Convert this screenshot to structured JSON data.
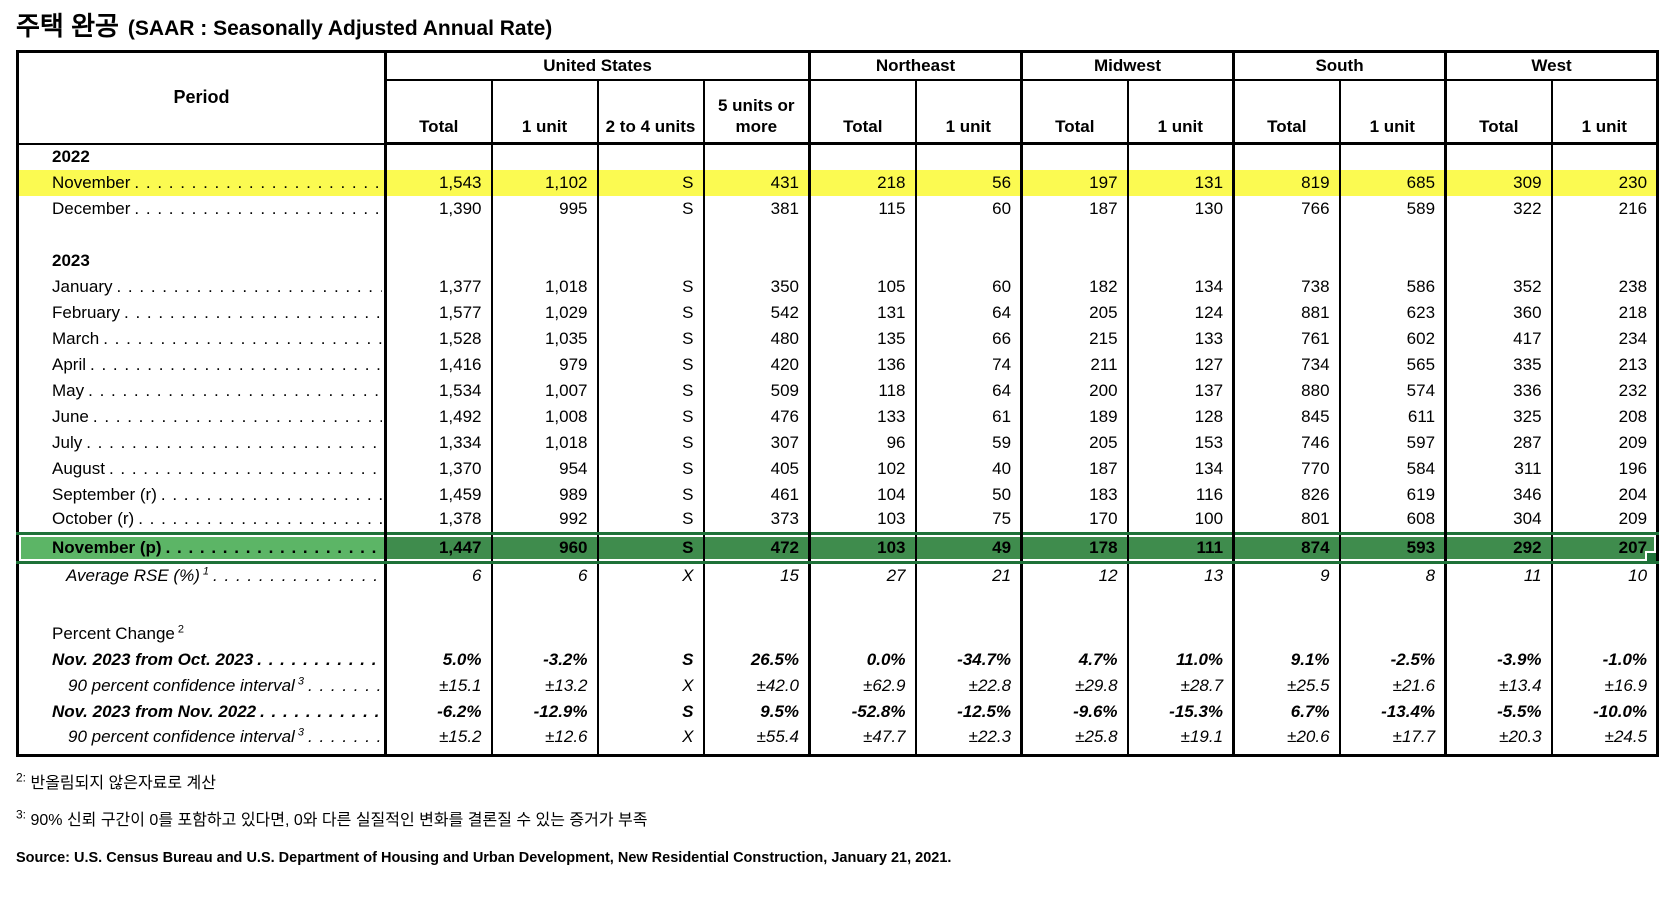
{
  "title": {
    "korean": "주택 완공",
    "english": "(SAAR : Seasonally Adjusted Annual Rate)"
  },
  "table": {
    "period_header": "Period",
    "groups": [
      {
        "label": "United States",
        "cols": [
          "Total",
          "1 unit",
          "2 to 4 units",
          "5 units or more"
        ]
      },
      {
        "label": "Northeast",
        "cols": [
          "Total",
          "1 unit"
        ]
      },
      {
        "label": "Midwest",
        "cols": [
          "Total",
          "1 unit"
        ]
      },
      {
        "label": "South",
        "cols": [
          "Total",
          "1 unit"
        ]
      },
      {
        "label": "West",
        "cols": [
          "Total",
          "1 unit"
        ]
      }
    ],
    "rows": [
      {
        "type": "year",
        "label": "2022"
      },
      {
        "type": "data",
        "label": "November",
        "highlight": "yellow",
        "values": [
          "1,543",
          "1,102",
          "S",
          "431",
          "218",
          "56",
          "197",
          "131",
          "819",
          "685",
          "309",
          "230"
        ]
      },
      {
        "type": "data",
        "label": "December",
        "values": [
          "1,390",
          "995",
          "S",
          "381",
          "115",
          "60",
          "187",
          "130",
          "766",
          "589",
          "322",
          "216"
        ]
      },
      {
        "type": "blank"
      },
      {
        "type": "year",
        "label": "2023"
      },
      {
        "type": "data",
        "label": "January",
        "values": [
          "1,377",
          "1,018",
          "S",
          "350",
          "105",
          "60",
          "182",
          "134",
          "738",
          "586",
          "352",
          "238"
        ]
      },
      {
        "type": "data",
        "label": "February",
        "values": [
          "1,577",
          "1,029",
          "S",
          "542",
          "131",
          "64",
          "205",
          "124",
          "881",
          "623",
          "360",
          "218"
        ]
      },
      {
        "type": "data",
        "label": "March",
        "values": [
          "1,528",
          "1,035",
          "S",
          "480",
          "135",
          "66",
          "215",
          "133",
          "761",
          "602",
          "417",
          "234"
        ]
      },
      {
        "type": "data",
        "label": "April",
        "values": [
          "1,416",
          "979",
          "S",
          "420",
          "136",
          "74",
          "211",
          "127",
          "734",
          "565",
          "335",
          "213"
        ]
      },
      {
        "type": "data",
        "label": "May",
        "values": [
          "1,534",
          "1,007",
          "S",
          "509",
          "118",
          "64",
          "200",
          "137",
          "880",
          "574",
          "336",
          "232"
        ]
      },
      {
        "type": "data",
        "label": "June",
        "values": [
          "1,492",
          "1,008",
          "S",
          "476",
          "133",
          "61",
          "189",
          "128",
          "845",
          "611",
          "325",
          "208"
        ]
      },
      {
        "type": "data",
        "label": "July",
        "values": [
          "1,334",
          "1,018",
          "S",
          "307",
          "96",
          "59",
          "205",
          "153",
          "746",
          "597",
          "287",
          "209"
        ]
      },
      {
        "type": "data",
        "label": "August",
        "values": [
          "1,370",
          "954",
          "S",
          "405",
          "102",
          "40",
          "187",
          "134",
          "770",
          "584",
          "311",
          "196"
        ]
      },
      {
        "type": "data",
        "label": "September (r)",
        "values": [
          "1,459",
          "989",
          "S",
          "461",
          "104",
          "50",
          "183",
          "116",
          "826",
          "619",
          "346",
          "204"
        ]
      },
      {
        "type": "data",
        "label": "October (r)",
        "values": [
          "1,378",
          "992",
          "S",
          "373",
          "103",
          "75",
          "170",
          "100",
          "801",
          "608",
          "304",
          "209"
        ]
      },
      {
        "type": "data",
        "label": "November (p)",
        "highlight": "green",
        "values": [
          "1,447",
          "960",
          "S",
          "472",
          "103",
          "49",
          "178",
          "111",
          "874",
          "593",
          "292",
          "207"
        ]
      },
      {
        "type": "rse",
        "label": "Average RSE (%)",
        "sup": "1",
        "values": [
          "6",
          "6",
          "X",
          "15",
          "27",
          "21",
          "12",
          "13",
          "9",
          "8",
          "11",
          "10"
        ]
      },
      {
        "type": "blank2"
      },
      {
        "type": "section",
        "label": "Percent Change",
        "sup": "2"
      },
      {
        "type": "pct",
        "label": "Nov. 2023 from Oct. 2023",
        "values": [
          "5.0%",
          "-3.2%",
          "S",
          "26.5%",
          "0.0%",
          "-34.7%",
          "4.7%",
          "11.0%",
          "9.1%",
          "-2.5%",
          "-3.9%",
          "-1.0%"
        ]
      },
      {
        "type": "ci",
        "label": "90 percent confidence interval",
        "sup": "3",
        "values": [
          "±15.1",
          "±13.2",
          "X",
          "±42.0",
          "±62.9",
          "±22.8",
          "±29.8",
          "±28.7",
          "±25.5",
          "±21.6",
          "±13.4",
          "±16.9"
        ]
      },
      {
        "type": "pct",
        "label": "Nov. 2023 from Nov. 2022",
        "values": [
          "-6.2%",
          "-12.9%",
          "S",
          "9.5%",
          "-52.8%",
          "-12.5%",
          "-9.6%",
          "-15.3%",
          "6.7%",
          "-13.4%",
          "-5.5%",
          "-10.0%"
        ]
      },
      {
        "type": "ci",
        "label": "90 percent confidence interval",
        "sup": "3",
        "last": true,
        "values": [
          "±15.2",
          "±12.6",
          "X",
          "±55.4",
          "±47.7",
          "±22.3",
          "±25.8",
          "±19.1",
          "±20.6",
          "±17.7",
          "±20.3",
          "±24.5"
        ]
      }
    ]
  },
  "footnotes": [
    {
      "marker": "2:",
      "text": "반올림되지 않은자료로 계산"
    },
    {
      "marker": "3:",
      "text": "90% 신뢰 구간이 0를 포함하고 있다면, 0와 다른 실질적인 변화를 결론질 수 있는 증거가 부족"
    }
  ],
  "source": "Source: U.S. Census Bureau and U.S. Department of Housing and Urban Development, New Residential Construction, January 21, 2021.",
  "colors": {
    "highlight_yellow": "#fbfa51",
    "selected_label_green": "#5cb566",
    "selected_cell_green": "#3f8c4d",
    "selection_border_green": "#1e7138",
    "border": "#000000"
  }
}
